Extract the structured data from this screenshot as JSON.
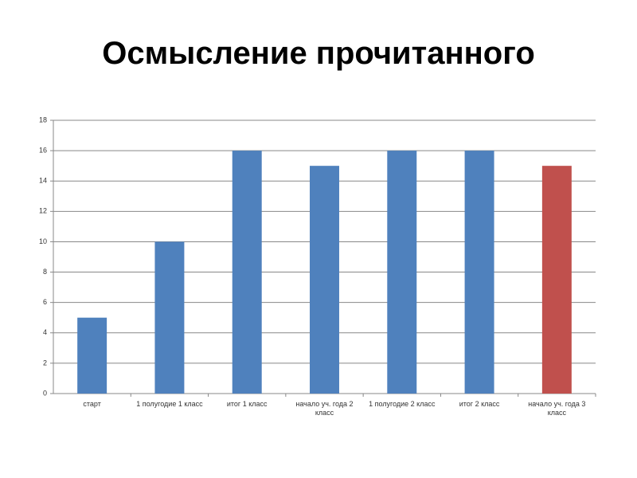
{
  "chart_data": {
    "type": "bar",
    "title": "Осмысление прочитанного",
    "categories": [
      "старт",
      "1 полугодие 1 класс",
      "итог 1 класс",
      "начало уч. года 2 класс",
      "1 полугодие 2 класс",
      "итог 2 класс",
      "начало уч. года 3 класс"
    ],
    "values": [
      5,
      10,
      16,
      15,
      16,
      16,
      15
    ],
    "colors": [
      "#4f81bd",
      "#4f81bd",
      "#4f81bd",
      "#4f81bd",
      "#4f81bd",
      "#4f81bd",
      "#c0504d"
    ],
    "ylim": [
      0,
      18
    ],
    "yticks": [
      0,
      2,
      4,
      6,
      8,
      10,
      12,
      14,
      16,
      18
    ],
    "grid": true
  }
}
